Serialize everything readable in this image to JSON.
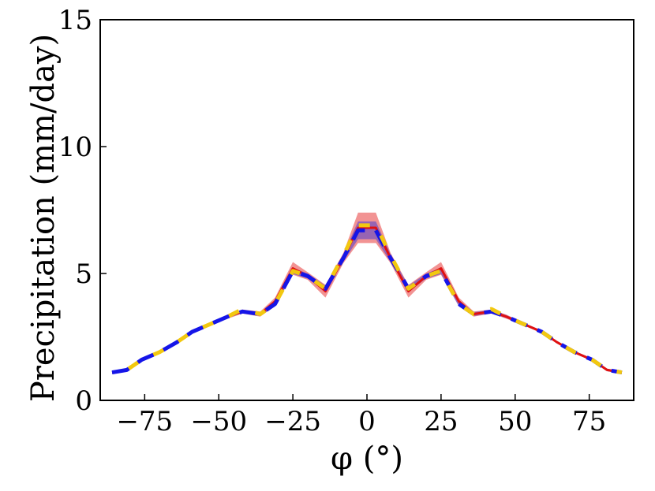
{
  "chart_data": {
    "type": "line",
    "xlabel": "φ (°)",
    "ylabel": "Precipitation (mm/day)",
    "xlim": [
      -90,
      90
    ],
    "ylim": [
      0,
      15
    ],
    "xticks": [
      -75,
      -50,
      -25,
      0,
      25,
      50,
      75
    ],
    "xtick_labels": [
      "−75",
      "−50",
      "−25",
      "0",
      "25",
      "50",
      "75"
    ],
    "yticks": [
      0,
      5,
      10,
      15
    ],
    "ytick_labels": [
      "0",
      "5",
      "10",
      "15"
    ],
    "grid": false,
    "x": [
      -86,
      -81,
      -76,
      -70,
      -64,
      -59,
      -53,
      -47,
      -42,
      -36,
      -31,
      -25,
      -20,
      -14,
      -8,
      -3,
      3,
      8,
      14,
      20,
      25,
      31,
      36,
      42,
      47,
      53,
      59,
      64,
      70,
      76,
      81,
      86
    ],
    "series": [
      {
        "color": "#e01010",
        "band_color": "#f08080",
        "style": "solid",
        "values": [
          1.1,
          1.2,
          1.6,
          1.9,
          2.3,
          2.7,
          3.0,
          3.3,
          3.5,
          3.4,
          3.9,
          5.2,
          4.9,
          4.3,
          5.6,
          6.8,
          6.8,
          5.6,
          4.3,
          4.9,
          5.2,
          3.9,
          3.4,
          3.5,
          3.3,
          3.0,
          2.7,
          2.3,
          1.9,
          1.6,
          1.2,
          1.1
        ],
        "band_halfwidth": [
          0.05,
          0.05,
          0.05,
          0.05,
          0.05,
          0.05,
          0.05,
          0.08,
          0.08,
          0.1,
          0.15,
          0.25,
          0.15,
          0.25,
          0.2,
          0.6,
          0.6,
          0.2,
          0.25,
          0.15,
          0.25,
          0.15,
          0.1,
          0.08,
          0.08,
          0.05,
          0.05,
          0.05,
          0.05,
          0.05,
          0.05,
          0.05
        ]
      },
      {
        "color": "#1515e8",
        "band_color": "#7050c0",
        "style": "dashed",
        "values": [
          1.1,
          1.2,
          1.6,
          1.9,
          2.3,
          2.7,
          3.0,
          3.3,
          3.5,
          3.4,
          3.8,
          5.1,
          4.9,
          4.4,
          5.6,
          6.7,
          6.7,
          5.6,
          4.4,
          4.9,
          5.1,
          3.8,
          3.4,
          3.5,
          3.3,
          3.0,
          2.7,
          2.3,
          1.9,
          1.6,
          1.2,
          1.1
        ],
        "band_halfwidth": [
          0.05,
          0.05,
          0.05,
          0.05,
          0.05,
          0.05,
          0.05,
          0.06,
          0.06,
          0.08,
          0.1,
          0.12,
          0.1,
          0.12,
          0.15,
          0.35,
          0.35,
          0.15,
          0.12,
          0.1,
          0.12,
          0.1,
          0.08,
          0.06,
          0.06,
          0.05,
          0.05,
          0.05,
          0.05,
          0.05,
          0.05,
          0.05
        ]
      },
      {
        "color": "#f2c80f",
        "band_color": "#f2c80f",
        "style": "dashed-offset",
        "values": [
          1.1,
          1.2,
          1.6,
          1.9,
          2.3,
          2.7,
          3.0,
          3.3,
          3.6,
          3.4,
          3.8,
          5.1,
          4.9,
          4.4,
          5.7,
          6.9,
          6.9,
          5.7,
          4.4,
          4.9,
          5.1,
          3.8,
          3.4,
          3.6,
          3.3,
          3.0,
          2.7,
          2.3,
          1.9,
          1.6,
          1.2,
          1.1
        ],
        "band_halfwidth": [
          0,
          0,
          0,
          0,
          0,
          0,
          0,
          0,
          0,
          0,
          0,
          0,
          0,
          0,
          0,
          0,
          0,
          0,
          0,
          0,
          0,
          0,
          0,
          0,
          0,
          0,
          0,
          0,
          0,
          0,
          0,
          0
        ]
      }
    ]
  }
}
